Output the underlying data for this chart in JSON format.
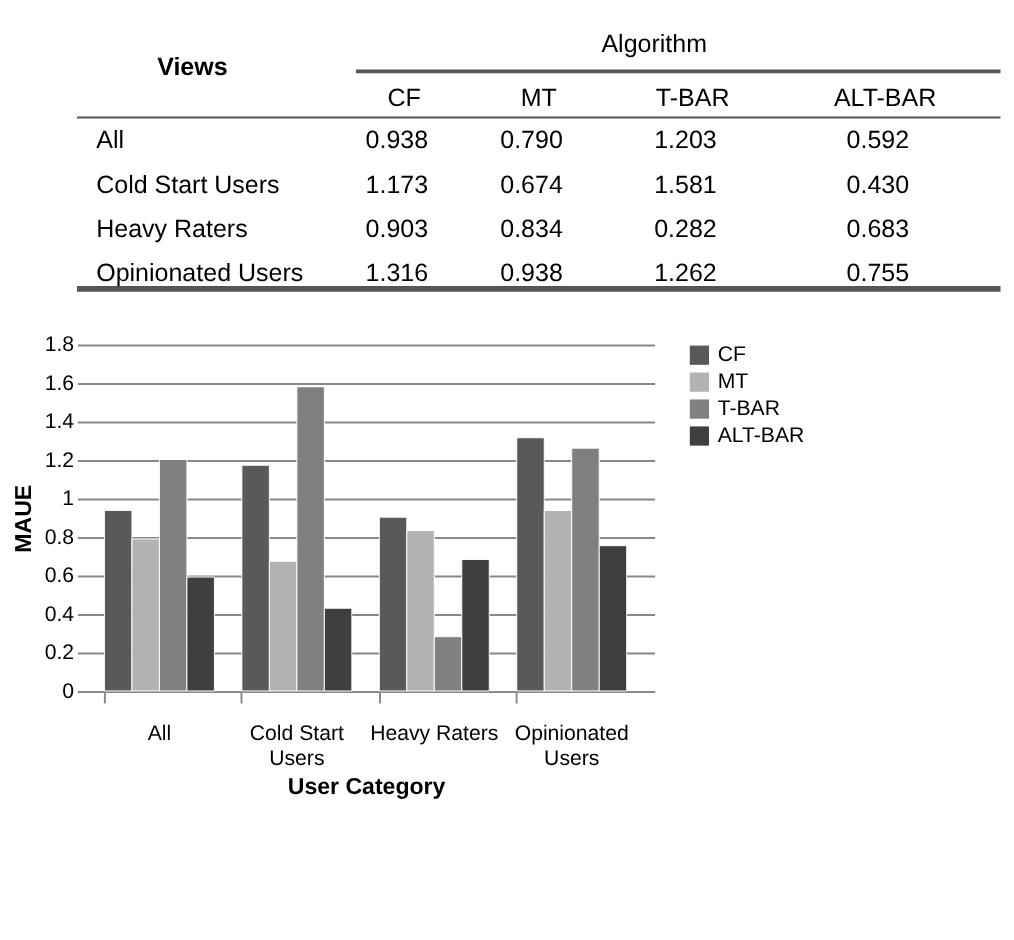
{
  "chart_data": {
    "type": "bar",
    "categories": [
      "All",
      "Cold Start Users",
      "Heavy Raters",
      "Opinionated Users"
    ],
    "series": [
      {
        "name": "CF",
        "color": "#595959",
        "values": [
          0.938,
          1.173,
          0.903,
          1.316
        ]
      },
      {
        "name": "MT",
        "color": "#b3b3b3",
        "values": [
          0.79,
          0.674,
          0.834,
          0.938
        ]
      },
      {
        "name": "T-BAR",
        "color": "#808080",
        "values": [
          1.203,
          1.581,
          0.282,
          1.262
        ]
      },
      {
        "name": "ALT-BAR",
        "color": "#3f3f3f",
        "values": [
          0.592,
          0.43,
          0.683,
          0.755
        ]
      }
    ],
    "xlabel": "User Category",
    "ylabel": "MAUE",
    "ylim": [
      0,
      1.8
    ],
    "yticks": [
      {
        "value": 0,
        "label": "0"
      },
      0.2,
      0.4,
      0.6,
      0.8,
      {
        "value": 1,
        "label": "1"
      },
      1.2,
      1.4,
      1.6,
      1.8
    ],
    "annotations": [
      "Views",
      "Algorithm",
      "0.938",
      "0.790",
      "1.203",
      "0.592",
      "1.173",
      "0.674",
      "1.581",
      "0.430",
      "0.903",
      "0.834",
      "0.282",
      "0.683",
      "1.316",
      "0.938",
      "1.262",
      "0.755"
    ],
    "grid": "y",
    "legend": "right"
  }
}
